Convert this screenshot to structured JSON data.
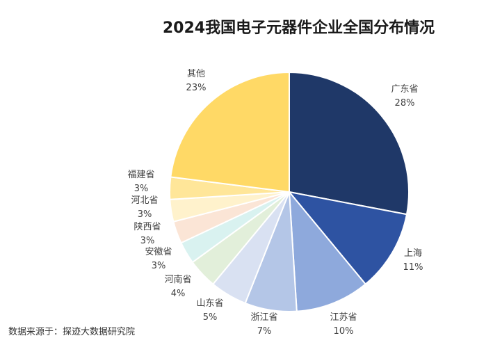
{
  "chart_data": {
    "type": "pie",
    "title": "2024我国电子元器件企业全国分布情况",
    "slices": [
      {
        "label": "广东省",
        "value": 28,
        "value_label": "28%",
        "color": "#1f3868"
      },
      {
        "label": "上海",
        "value": 11,
        "value_label": "11%",
        "color": "#2e53a2"
      },
      {
        "label": "江苏省",
        "value": 10,
        "value_label": "10%",
        "color": "#8ea9dc"
      },
      {
        "label": "浙江省",
        "value": 7,
        "value_label": "7%",
        "color": "#b4c6e7"
      },
      {
        "label": "山东省",
        "value": 5,
        "value_label": "5%",
        "color": "#d9e1f2"
      },
      {
        "label": "河南省",
        "value": 4,
        "value_label": "4%",
        "color": "#e2efda"
      },
      {
        "label": "安徽省",
        "value": 3,
        "value_label": "3%",
        "color": "#d9f2f0"
      },
      {
        "label": "陕西省",
        "value": 3,
        "value_label": "3%",
        "color": "#fbe5d6"
      },
      {
        "label": "河北省",
        "value": 3,
        "value_label": "3%",
        "color": "#fff2cc"
      },
      {
        "label": "福建省",
        "value": 3,
        "value_label": "3%",
        "color": "#ffe699"
      },
      {
        "label": "其他",
        "value": 23,
        "value_label": "23%",
        "color": "#ffd966"
      }
    ]
  },
  "source_text": "数据来源于：探迹大数据研究院"
}
